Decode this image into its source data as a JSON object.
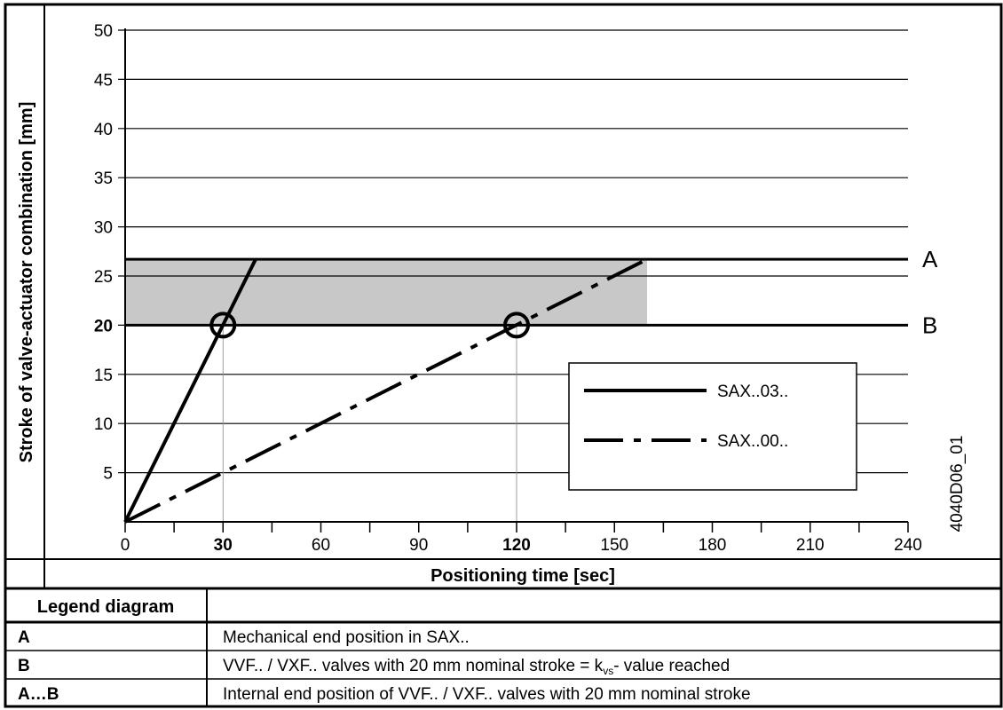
{
  "chart_data": {
    "type": "line",
    "title": "",
    "xlabel": "Positioning time [sec]",
    "ylabel": "Stroke of valve-actuator combination [mm]",
    "xlim": [
      0,
      240
    ],
    "ylim": [
      0,
      50
    ],
    "x_ticks": [
      "0",
      "30",
      "60",
      "90",
      "120",
      "150",
      "180",
      "210",
      "240"
    ],
    "x_ticks_bold": [
      "30",
      "120"
    ],
    "y_ticks": [
      "5",
      "10",
      "15",
      "20",
      "25",
      "30",
      "35",
      "40",
      "45",
      "50"
    ],
    "y_ticks_bold": [
      "20"
    ],
    "grid": "horizontal",
    "series": [
      {
        "name": "SAX..03..",
        "style": "solid",
        "x": [
          0,
          40
        ],
        "y": [
          0,
          26.7
        ]
      },
      {
        "name": "SAX..00..",
        "style": "dash-dot",
        "x": [
          0,
          160
        ],
        "y": [
          0,
          26.7
        ]
      }
    ],
    "shaded_band": {
      "y_from": 20,
      "y_to": 26.7,
      "x_from": 0,
      "x_to": 160
    },
    "reference_lines": [
      {
        "label": "A",
        "y": 26.7
      },
      {
        "label": "B",
        "y": 20
      }
    ],
    "markers": [
      {
        "x": 30,
        "y": 20
      },
      {
        "x": 120,
        "y": 20
      }
    ],
    "legend_placement": "bottom-right",
    "side_label": "4040D06_01"
  },
  "legend_table": {
    "header": "Legend diagram",
    "rows": [
      {
        "key": "A",
        "text": "Mechanical end position in SAX.."
      },
      {
        "key": "B",
        "text_before": "VVF.. / VXF.. valves with 20 mm nominal stroke = k",
        "sub": "vs",
        "text_after": "- value reached"
      },
      {
        "key": "A…B",
        "text": "Internal end position of VVF.. / VXF.. valves with 20 mm nominal stroke"
      }
    ]
  }
}
